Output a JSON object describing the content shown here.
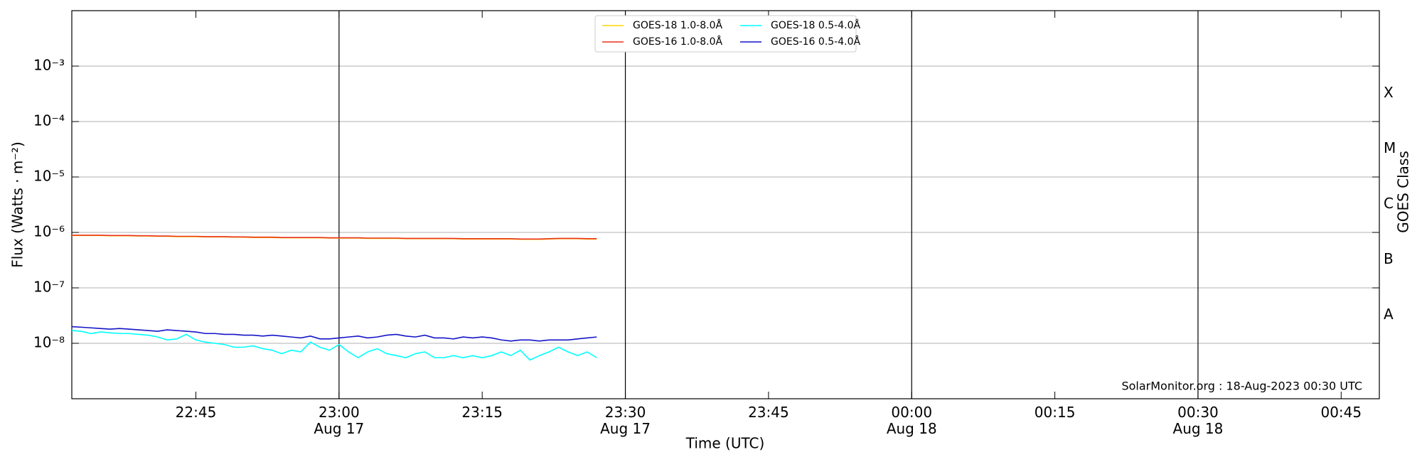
{
  "chart_data": {
    "type": "line",
    "y_label": "Flux (Watts · m⁻²)",
    "x_label": "Time (UTC)",
    "y2_label": "GOES Class",
    "annotation": "SolarMonitor.org : 18-Aug-2023 00:30 UTC",
    "log_y": true,
    "grid": true,
    "legend": "top",
    "xlim": [
      "2023-08-17T22:32",
      "2023-08-18T00:49"
    ],
    "xticks": [
      {
        "value": "2023-08-17T22:45",
        "label": "22:45"
      },
      {
        "value": "2023-08-17T23:00",
        "label": "23:00\nAug 17"
      },
      {
        "value": "2023-08-17T23:15",
        "label": "23:15"
      },
      {
        "value": "2023-08-17T23:30",
        "label": "23:30\nAug 17"
      },
      {
        "value": "2023-08-17T23:45",
        "label": "23:45"
      },
      {
        "value": "2023-08-18T00:00",
        "label": "00:00\nAug 18"
      },
      {
        "value": "2023-08-18T00:15",
        "label": "00:15"
      },
      {
        "value": "2023-08-18T00:30",
        "label": "00:30\nAug 18"
      },
      {
        "value": "2023-08-18T00:45",
        "label": "00:45"
      }
    ],
    "vlines": [
      "2023-08-17T23:00",
      "2023-08-17T23:30",
      "2023-08-18T00:00",
      "2023-08-18T00:30"
    ],
    "ylim": [
      1e-09,
      0.01
    ],
    "yticks": [
      {
        "value": 1e-08,
        "label": "10⁻⁸"
      },
      {
        "value": 1e-07,
        "label": "10⁻⁷"
      },
      {
        "value": 1e-06,
        "label": "10⁻⁶"
      },
      {
        "value": 1e-05,
        "label": "10⁻⁵"
      },
      {
        "value": 0.0001,
        "label": "10⁻⁴"
      },
      {
        "value": 0.001,
        "label": "10⁻³"
      }
    ],
    "y2lim": [
      1e-09,
      0.01
    ],
    "y2ticks": [
      {
        "value": 3.2e-08,
        "label": "A"
      },
      {
        "value": 3.2e-07,
        "label": "B"
      },
      {
        "value": 3.2e-06,
        "label": "C"
      },
      {
        "value": 3.2e-05,
        "label": "M"
      },
      {
        "value": 0.00032,
        "label": "X"
      }
    ],
    "x": [
      "2023-08-17T22:32",
      "2023-08-17T22:33",
      "2023-08-17T22:34",
      "2023-08-17T22:35",
      "2023-08-17T22:36",
      "2023-08-17T22:37",
      "2023-08-17T22:38",
      "2023-08-17T22:39",
      "2023-08-17T22:40",
      "2023-08-17T22:41",
      "2023-08-17T22:42",
      "2023-08-17T22:43",
      "2023-08-17T22:44",
      "2023-08-17T22:45",
      "2023-08-17T22:46",
      "2023-08-17T22:47",
      "2023-08-17T22:48",
      "2023-08-17T22:49",
      "2023-08-17T22:50",
      "2023-08-17T22:51",
      "2023-08-17T22:52",
      "2023-08-17T22:53",
      "2023-08-17T22:54",
      "2023-08-17T22:55",
      "2023-08-17T22:56",
      "2023-08-17T22:57",
      "2023-08-17T22:58",
      "2023-08-17T22:59",
      "2023-08-17T23:00",
      "2023-08-17T23:01",
      "2023-08-17T23:02",
      "2023-08-17T23:03",
      "2023-08-17T23:04",
      "2023-08-17T23:05",
      "2023-08-17T23:06",
      "2023-08-17T23:07",
      "2023-08-17T23:08",
      "2023-08-17T23:09",
      "2023-08-17T23:10",
      "2023-08-17T23:11",
      "2023-08-17T23:12",
      "2023-08-17T23:13",
      "2023-08-17T23:14",
      "2023-08-17T23:15",
      "2023-08-17T23:16",
      "2023-08-17T23:17",
      "2023-08-17T23:18",
      "2023-08-17T23:19",
      "2023-08-17T23:20",
      "2023-08-17T23:21",
      "2023-08-17T23:22",
      "2023-08-17T23:23",
      "2023-08-17T23:24",
      "2023-08-17T23:25",
      "2023-08-17T23:26",
      "2023-08-17T23:27"
    ],
    "series": [
      {
        "name": "GOES-18 1.0-8.0Å",
        "color": "#ffd700",
        "values": [
          8.8e-07,
          8.8e-07,
          8.8e-07,
          8.8e-07,
          8.7e-07,
          8.7e-07,
          8.7e-07,
          8.6e-07,
          8.6e-07,
          8.5e-07,
          8.5e-07,
          8.4e-07,
          8.4e-07,
          8.4e-07,
          8.3e-07,
          8.3e-07,
          8.3e-07,
          8.2e-07,
          8.2e-07,
          8.1e-07,
          8.1e-07,
          8.1e-07,
          8e-07,
          8e-07,
          8e-07,
          8e-07,
          8e-07,
          7.9e-07,
          7.9e-07,
          7.9e-07,
          7.9e-07,
          7.8e-07,
          7.8e-07,
          7.8e-07,
          7.8e-07,
          7.7e-07,
          7.7e-07,
          7.7e-07,
          7.7e-07,
          7.7e-07,
          7.7e-07,
          7.6e-07,
          7.6e-07,
          7.6e-07,
          7.6e-07,
          7.6e-07,
          7.6e-07,
          7.5e-07,
          7.5e-07,
          7.5e-07,
          7.6e-07,
          7.7e-07,
          7.7e-07,
          7.7e-07,
          7.6e-07,
          7.6e-07
        ]
      },
      {
        "name": "GOES-16 1.0-8.0Å",
        "color": "#e8321e",
        "values": [
          8.9e-07,
          8.9e-07,
          8.9e-07,
          8.9e-07,
          8.8e-07,
          8.8e-07,
          8.8e-07,
          8.7e-07,
          8.7e-07,
          8.6e-07,
          8.6e-07,
          8.5e-07,
          8.5e-07,
          8.5e-07,
          8.4e-07,
          8.4e-07,
          8.4e-07,
          8.3e-07,
          8.3e-07,
          8.2e-07,
          8.2e-07,
          8.2e-07,
          8.1e-07,
          8.1e-07,
          8.1e-07,
          8.1e-07,
          8.1e-07,
          8e-07,
          8e-07,
          8e-07,
          8e-07,
          7.9e-07,
          7.9e-07,
          7.9e-07,
          7.9e-07,
          7.8e-07,
          7.8e-07,
          7.8e-07,
          7.8e-07,
          7.8e-07,
          7.8e-07,
          7.7e-07,
          7.7e-07,
          7.7e-07,
          7.7e-07,
          7.7e-07,
          7.7e-07,
          7.6e-07,
          7.6e-07,
          7.6e-07,
          7.7e-07,
          7.8e-07,
          7.8e-07,
          7.8e-07,
          7.7e-07,
          7.7e-07
        ]
      },
      {
        "name": "GOES-18 0.5-4.0Å",
        "color": "#00ffff",
        "values": [
          1.7e-08,
          1.65e-08,
          1.5e-08,
          1.6e-08,
          1.55e-08,
          1.5e-08,
          1.5e-08,
          1.45e-08,
          1.4e-08,
          1.3e-08,
          1.15e-08,
          1.2e-08,
          1.45e-08,
          1.15e-08,
          1.05e-08,
          1e-08,
          9.5e-09,
          8.5e-09,
          8.5e-09,
          9e-09,
          8e-09,
          7.5e-09,
          6.5e-09,
          7.5e-09,
          7e-09,
          1.05e-08,
          8.5e-09,
          7.5e-09,
          9.5e-09,
          7e-09,
          5.5e-09,
          7e-09,
          8e-09,
          6.5e-09,
          6e-09,
          5.5e-09,
          6.5e-09,
          7e-09,
          5.5e-09,
          5.5e-09,
          6e-09,
          5.5e-09,
          6e-09,
          5.5e-09,
          6e-09,
          7e-09,
          6e-09,
          7.5e-09,
          5e-09,
          6e-09,
          7e-09,
          8.5e-09,
          7e-09,
          6e-09,
          7e-09,
          5.5e-09
        ]
      },
      {
        "name": "GOES-16 0.5-4.0Å",
        "color": "#1414c8",
        "values": [
          2e-08,
          1.95e-08,
          1.9e-08,
          1.85e-08,
          1.8e-08,
          1.85e-08,
          1.8e-08,
          1.75e-08,
          1.7e-08,
          1.65e-08,
          1.75e-08,
          1.7e-08,
          1.65e-08,
          1.6e-08,
          1.5e-08,
          1.5e-08,
          1.45e-08,
          1.45e-08,
          1.4e-08,
          1.4e-08,
          1.35e-08,
          1.4e-08,
          1.35e-08,
          1.3e-08,
          1.25e-08,
          1.35e-08,
          1.2e-08,
          1.2e-08,
          1.25e-08,
          1.3e-08,
          1.35e-08,
          1.25e-08,
          1.3e-08,
          1.4e-08,
          1.45e-08,
          1.35e-08,
          1.3e-08,
          1.4e-08,
          1.25e-08,
          1.25e-08,
          1.2e-08,
          1.3e-08,
          1.25e-08,
          1.3e-08,
          1.25e-08,
          1.15e-08,
          1.1e-08,
          1.15e-08,
          1.15e-08,
          1.1e-08,
          1.15e-08,
          1.15e-08,
          1.15e-08,
          1.2e-08,
          1.25e-08,
          1.3e-08
        ]
      }
    ]
  }
}
